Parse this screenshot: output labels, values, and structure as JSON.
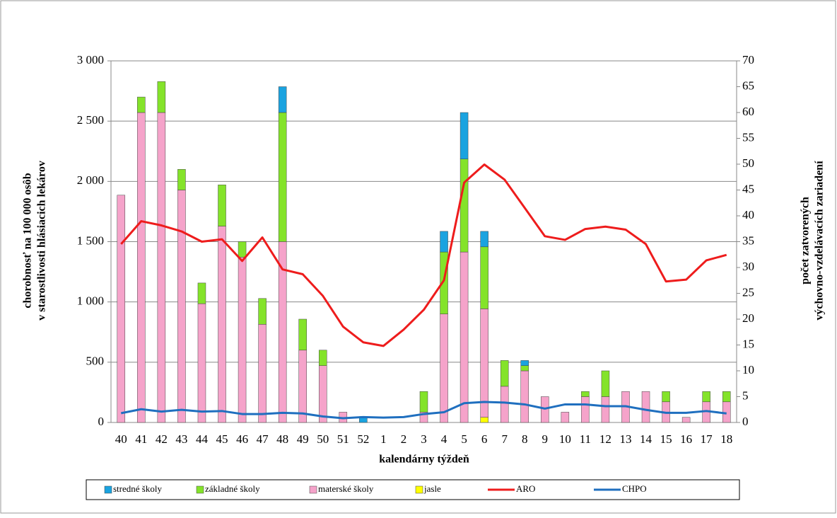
{
  "chart_data": {
    "type": "combo",
    "xlabel": "kalendárny týždeň",
    "ylabel": [
      "chorobnosť na 100 000 osôb",
      "v starostlivosti hlásiacich lekárov"
    ],
    "y2label": [
      "počet zatvorených",
      "výchovno-vzdelávacích zariadení"
    ],
    "categories": [
      "40",
      "41",
      "42",
      "43",
      "44",
      "45",
      "46",
      "47",
      "48",
      "49",
      "50",
      "51",
      "52",
      "1",
      "2",
      "3",
      "4",
      "5",
      "6",
      "7",
      "8",
      "9",
      "10",
      "11",
      "12",
      "13",
      "14",
      "15",
      "16",
      "17",
      "18"
    ],
    "ylim": [
      0,
      3000
    ],
    "yticks": [
      0,
      500,
      {
        "value": 1000,
        "label": "1 000"
      },
      {
        "value": 1500,
        "label": "1 500"
      },
      {
        "value": 2000,
        "label": "2 000"
      },
      {
        "value": 2500,
        "label": "2 500"
      },
      {
        "value": 3000,
        "label": "3 000"
      }
    ],
    "y2lim": [
      0,
      70
    ],
    "y2ticks": [
      0,
      5,
      10,
      15,
      20,
      25,
      30,
      35,
      40,
      45,
      50,
      55,
      60,
      65,
      70
    ],
    "grid": true,
    "legend": "bottom",
    "series": [
      {
        "name": "stredné školy",
        "type": "bar",
        "axis": "y2",
        "color": "#1aa3e0",
        "values": [
          0,
          0,
          0,
          0,
          0,
          0,
          0,
          0,
          5,
          0,
          0,
          0,
          1,
          0,
          0,
          0,
          4,
          9,
          3,
          0,
          1,
          0,
          0,
          0,
          0,
          0,
          0,
          0,
          0,
          0,
          0
        ]
      },
      {
        "name": "základné školy",
        "type": "bar",
        "axis": "y2",
        "color": "#84e32a",
        "values": [
          0,
          3,
          6,
          4,
          4,
          8,
          3,
          5,
          25,
          6,
          3,
          0,
          0,
          0,
          0,
          4,
          12,
          18,
          12,
          5,
          1,
          0,
          0,
          1,
          5,
          0,
          0,
          2,
          0,
          2,
          2
        ]
      },
      {
        "name": "materské školy",
        "type": "bar",
        "axis": "y2",
        "color": "#f5a3ca",
        "values": [
          44,
          60,
          60,
          45,
          23,
          38,
          32,
          19,
          35,
          14,
          11,
          2,
          0,
          0,
          0,
          2,
          21,
          33,
          21,
          7,
          10,
          5,
          2,
          5,
          5,
          6,
          6,
          4,
          1,
          4,
          4
        ]
      },
      {
        "name": "jasle",
        "type": "bar",
        "axis": "y2",
        "color": "#ffff00",
        "values": [
          0,
          0,
          0,
          0,
          0,
          0,
          0,
          0,
          0,
          0,
          0,
          0,
          0,
          0,
          0,
          0,
          0,
          0,
          1,
          0,
          0,
          0,
          0,
          0,
          0,
          0,
          0,
          0,
          0,
          0,
          0
        ]
      },
      {
        "name": "ARO",
        "type": "line",
        "color": "#ee1c1c",
        "values": [
          1480,
          1670,
          1635,
          1585,
          1500,
          1520,
          1340,
          1535,
          1270,
          1230,
          1050,
          795,
          665,
          635,
          770,
          935,
          1180,
          1990,
          2140,
          2015,
          1780,
          1545,
          1515,
          1605,
          1625,
          1600,
          1480,
          1170,
          1185,
          1345,
          1390
        ]
      },
      {
        "name": "CHPO",
        "type": "line",
        "color": "#1f6fbf",
        "values": [
          77,
          110,
          90,
          105,
          90,
          95,
          70,
          70,
          80,
          75,
          50,
          35,
          45,
          40,
          45,
          70,
          85,
          160,
          170,
          165,
          150,
          115,
          150,
          150,
          135,
          135,
          105,
          80,
          80,
          95,
          75
        ]
      }
    ]
  }
}
